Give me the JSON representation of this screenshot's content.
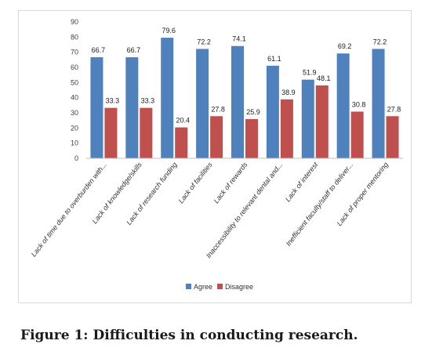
{
  "caption": "Figure 1: Difficulties in conducting research.",
  "chart_data": {
    "type": "bar",
    "title": "",
    "xlabel": "",
    "ylabel": "",
    "ylim": [
      0,
      90
    ],
    "yticks": [
      0,
      10,
      20,
      30,
      40,
      50,
      60,
      70,
      80,
      90
    ],
    "grid": false,
    "legend_position": "bottom",
    "categories": [
      "Lack of time due to overburden with...",
      "Lack of knowledge/skills",
      "Lack of research funding",
      "Lack of facilities",
      "Lack of rewards",
      "Inaccessibility to relevant dental and...",
      "Lack of interest",
      "Inefficient faculty/staff to deliver...",
      "Lack of proper mentoring"
    ],
    "series": [
      {
        "name": "Agree",
        "color": "#4f81bd",
        "values": [
          66.7,
          66.7,
          79.6,
          72.2,
          74.1,
          61.1,
          51.9,
          69.2,
          72.2
        ]
      },
      {
        "name": "Disagree",
        "color": "#c0504d",
        "values": [
          33.3,
          33.3,
          20.4,
          27.8,
          25.9,
          38.9,
          48.1,
          30.8,
          27.8
        ]
      }
    ]
  }
}
